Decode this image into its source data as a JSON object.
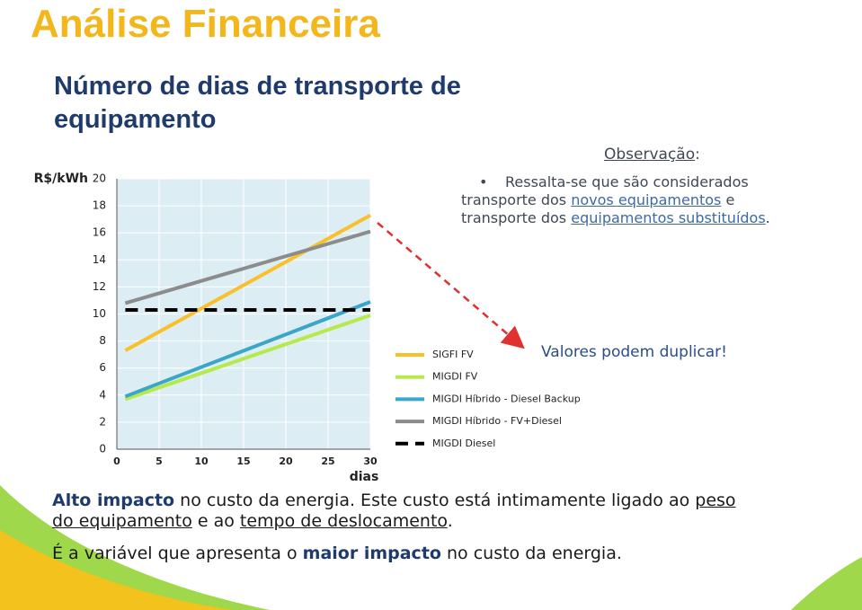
{
  "title": "Análise Financeira",
  "chart_data": {
    "type": "line",
    "title": "Número de dias de transporte de equipamento",
    "y_label": "R$/kWh",
    "x_label": "dias",
    "x": [
      1,
      30
    ],
    "xlim": [
      0,
      30
    ],
    "xticks": [
      0,
      5,
      10,
      15,
      20,
      25,
      30
    ],
    "ylim": [
      0,
      20
    ],
    "yticks": [
      0,
      2,
      4,
      6,
      8,
      10,
      12,
      14,
      16,
      18,
      20
    ],
    "grid": true,
    "series": [
      {
        "name": "SIGFI FV",
        "color": "#f9c02a",
        "values": [
          7.3,
          17.3
        ]
      },
      {
        "name": "MIGDI FV",
        "color": "#b5ea4a",
        "values": [
          3.7,
          9.9
        ]
      },
      {
        "name": "MIGDI Híbrido - Diesel Backup",
        "color": "#3aa6c8",
        "values": [
          3.9,
          10.9
        ]
      },
      {
        "name": "MIGDI Híbrido - FV+Diesel",
        "color": "#8c8c8c",
        "values": [
          10.8,
          16.1
        ]
      },
      {
        "name": "MIGDI Diesel",
        "color": "#000000",
        "dashed": true,
        "values": [
          10.3,
          10.3
        ]
      }
    ]
  },
  "observation": {
    "label": "Observação",
    "suffix": ":",
    "lines": [
      [
        "Ressalta-se que são considerados"
      ],
      [
        "transporte dos ",
        "novos equipamentos",
        " e"
      ],
      [
        "transporte dos ",
        "equipamentos substituídos",
        "."
      ]
    ]
  },
  "callout": "Valores podem duplicar!",
  "footer": {
    "line1": [
      "Alto impacto",
      " no custo da energia. Este custo está intimamente ligado ao ",
      "peso"
    ],
    "line2": [
      "do equipamento",
      " e ao ",
      "tempo de deslocamento",
      "."
    ],
    "line3": [
      "É a variável que apresenta o ",
      "maior impacto",
      " no custo da energia."
    ]
  }
}
